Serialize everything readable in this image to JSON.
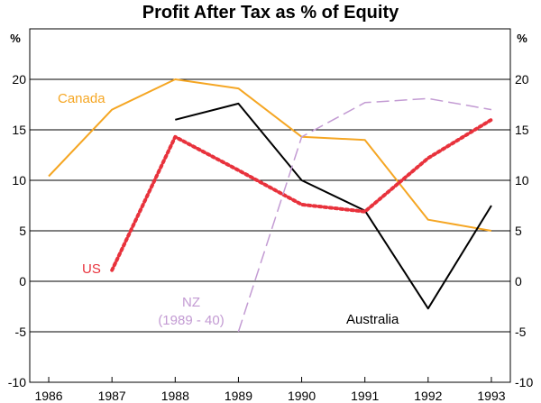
{
  "chart_data": {
    "type": "line",
    "title": "Profit After Tax as % of Equity",
    "ylabel_left": "%",
    "ylabel_right": "%",
    "xlabel": "",
    "ylim": [
      -10,
      25
    ],
    "yticks": [
      -10,
      -5,
      0,
      5,
      10,
      15,
      20
    ],
    "ytick_labels": [
      "-10",
      "-5",
      "0",
      "5",
      "10",
      "15",
      "20"
    ],
    "xlim": [
      1985.7,
      1993.3
    ],
    "xticks": [
      1986,
      1987,
      1988,
      1989,
      1990,
      1991,
      1992,
      1993
    ],
    "xtick_labels": [
      "1986",
      "1987",
      "1988",
      "1989",
      "1990",
      "1991",
      "1992",
      "1993"
    ],
    "grid": true,
    "series": [
      {
        "name": "Canada",
        "label": "Canada",
        "color": "#F5A623",
        "style": "solid",
        "x": [
          1986,
          1987,
          1988,
          1989,
          1990,
          1991,
          1992,
          1993
        ],
        "values": [
          10.4,
          17.0,
          20.0,
          19.1,
          14.3,
          14.0,
          6.1,
          5.0
        ]
      },
      {
        "name": "Australia",
        "label": "Australia",
        "color": "#000000",
        "style": "solid",
        "x": [
          1988,
          1989,
          1990,
          1991,
          1992,
          1993
        ],
        "values": [
          16.0,
          17.6,
          10.0,
          7.0,
          -2.7,
          7.5
        ]
      },
      {
        "name": "US",
        "label": "US",
        "color": "#E8323C",
        "style": "dotted",
        "x": [
          1987,
          1988,
          1989,
          1990,
          1991,
          1992,
          1993
        ],
        "values": [
          1.1,
          14.3,
          11.0,
          7.6,
          6.9,
          12.2,
          16.0
        ]
      },
      {
        "name": "NZ",
        "label": "NZ",
        "sublabel": "(1989 - 40)",
        "color": "#C39BD3",
        "style": "dashed",
        "x": [
          1989,
          1990,
          1991,
          1992,
          1993
        ],
        "values": [
          -5.0,
          14.3,
          17.7,
          18.1,
          17.0
        ]
      }
    ]
  }
}
